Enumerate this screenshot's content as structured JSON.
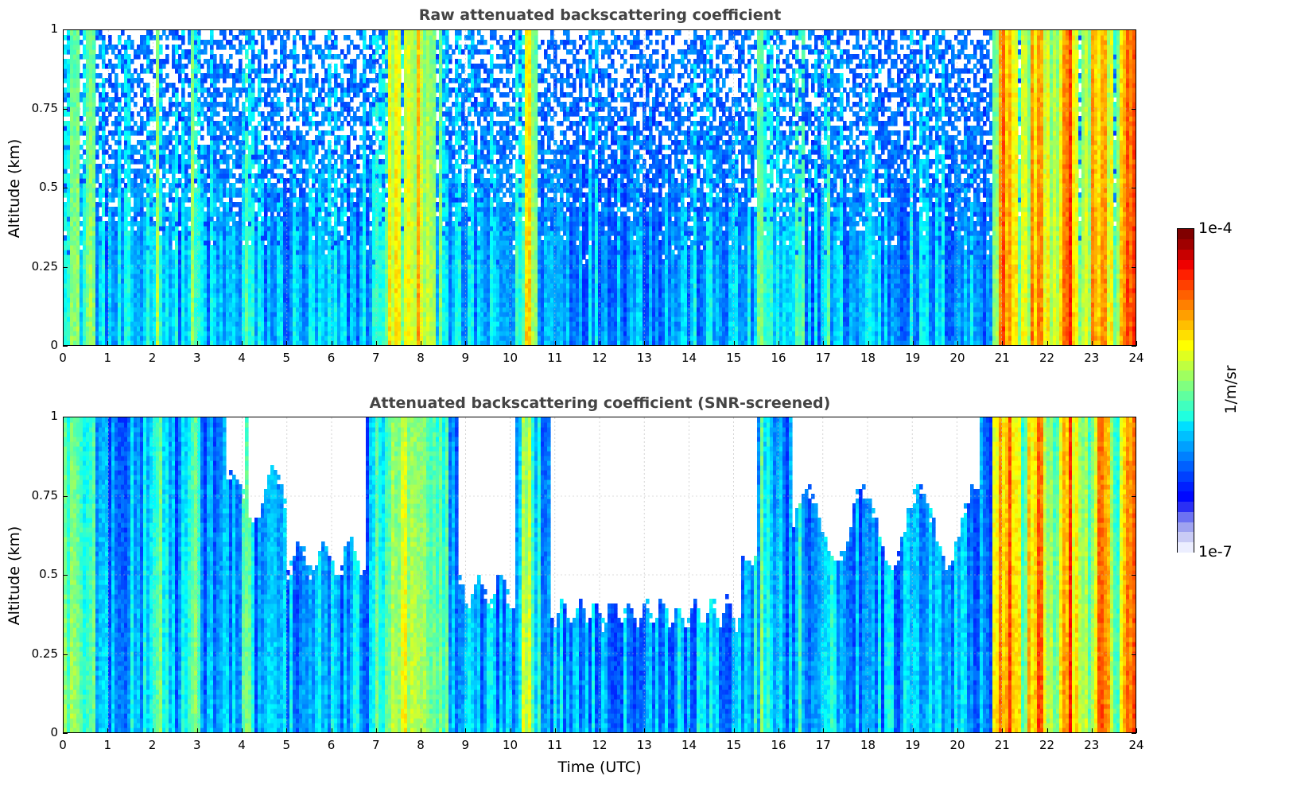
{
  "chart_data": [
    {
      "type": "heatmap",
      "title": "Raw attenuated backscattering coefficient",
      "xlabel": "",
      "ylabel": "Altitude (km)",
      "xlim": [
        0,
        24
      ],
      "ylim": [
        0,
        1
      ],
      "xticks": [
        "0",
        "1",
        "2",
        "3",
        "4",
        "5",
        "6",
        "7",
        "8",
        "9",
        "10",
        "11",
        "12",
        "13",
        "14",
        "15",
        "16",
        "17",
        "18",
        "19",
        "20",
        "21",
        "22",
        "23",
        "24"
      ],
      "yticks": [
        "0",
        "0.25",
        "0.5",
        "0.75",
        "1"
      ],
      "grid": true,
      "screened": false,
      "colorscale": "jet",
      "clim": [
        "1e-7",
        "1e-4"
      ]
    },
    {
      "type": "heatmap",
      "title": "Attenuated backscattering coefficient (SNR-screened)",
      "xlabel": "Time (UTC)",
      "ylabel": "Altitude (km)",
      "xlim": [
        0,
        24
      ],
      "ylim": [
        0,
        1
      ],
      "xticks": [
        "0",
        "1",
        "2",
        "3",
        "4",
        "5",
        "6",
        "7",
        "8",
        "9",
        "10",
        "11",
        "12",
        "13",
        "14",
        "15",
        "16",
        "17",
        "18",
        "19",
        "20",
        "21",
        "22",
        "23",
        "24"
      ],
      "yticks": [
        "0",
        "0.25",
        "0.5",
        "0.75",
        "1"
      ],
      "grid": true,
      "screened": true,
      "colorscale": "jet",
      "clim": [
        "1e-7",
        "1e-4"
      ]
    }
  ],
  "colorbar": {
    "max_label": "1e-4",
    "min_label": "1e-7",
    "unit": "1/m/sr",
    "colors": [
      "#eceeff",
      "#c9cbf5",
      "#9fa3f0",
      "#6c72f2",
      "#2a2ff5",
      "#0008ff",
      "#0020ff",
      "#0040ff",
      "#0060ff",
      "#0080ff",
      "#00a0ff",
      "#00c0ff",
      "#00dfff",
      "#20ffdf",
      "#40ffbf",
      "#60ff9f",
      "#80ff80",
      "#9fff60",
      "#bfff40",
      "#dfff20",
      "#ffff00",
      "#ffdf00",
      "#ffbf00",
      "#ff9f00",
      "#ff8000",
      "#ff6000",
      "#ff4000",
      "#ff2000",
      "#ef0000",
      "#c80000",
      "#a00000",
      "#800000"
    ]
  }
}
